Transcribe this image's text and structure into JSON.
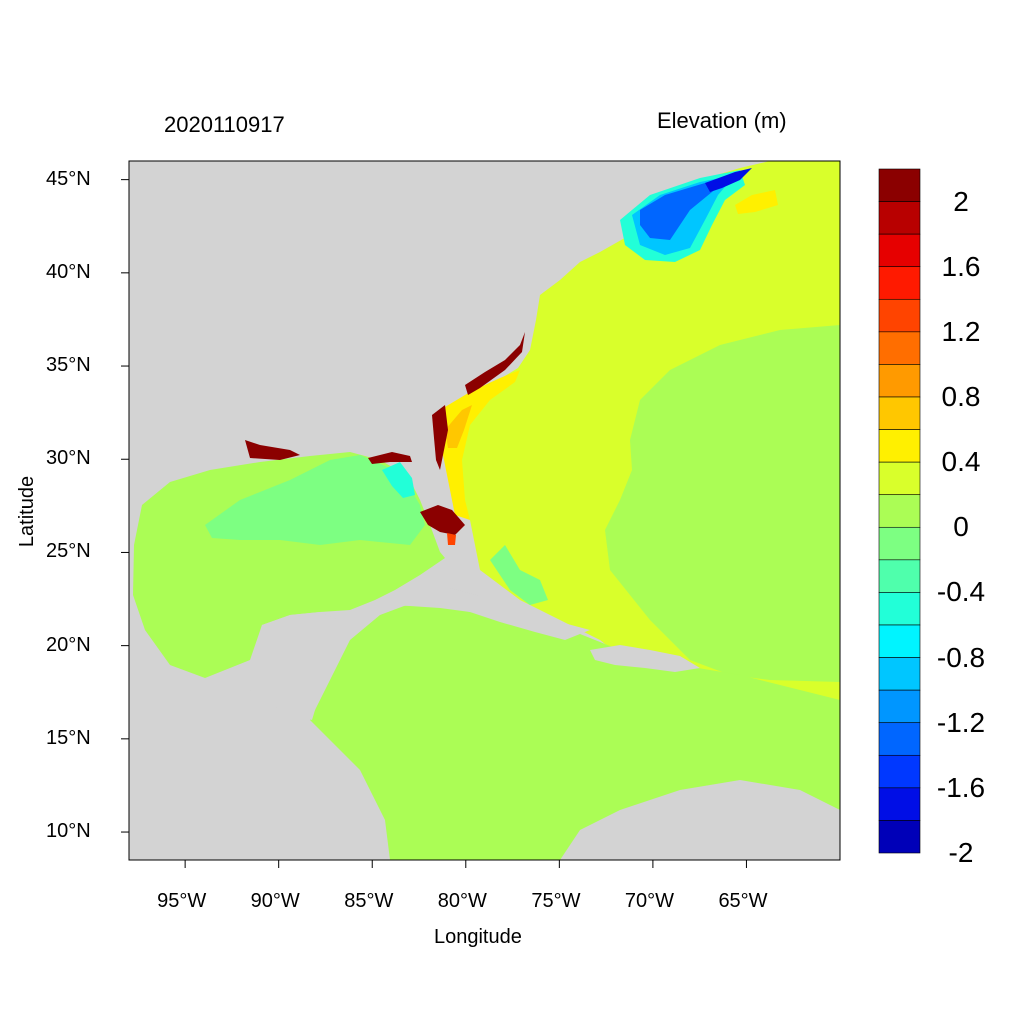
{
  "map": {
    "date_label": "2020110917",
    "variable_label": "Elevation (m)",
    "xlabel": "Longitude",
    "ylabel": "Latitude",
    "lon_range": [
      -98,
      -60
    ],
    "lat_range": [
      8.5,
      46
    ],
    "lon_ticks": [
      "95°W",
      "90°W",
      "85°W",
      "80°W",
      "75°W",
      "70°W",
      "65°W"
    ],
    "lon_tick_values": [
      -95,
      -90,
      -85,
      -80,
      -75,
      -70,
      -65
    ],
    "lat_ticks": [
      "45°N",
      "40°N",
      "35°N",
      "30°N",
      "25°N",
      "20°N",
      "15°N",
      "10°N"
    ],
    "lat_tick_values": [
      45,
      40,
      35,
      30,
      25,
      20,
      15,
      10
    ],
    "land_color": "#d3d3d3",
    "ocean_base_color": "#abfd55"
  },
  "colorbar": {
    "labels": [
      "2",
      "1.6",
      "1.2",
      "0.8",
      "0.4",
      "0",
      "-0.4",
      "-0.8",
      "-1.2",
      "-1.6",
      "-2"
    ],
    "colors_top_to_bottom": [
      "#8b0000",
      "#b80000",
      "#e60000",
      "#ff1a00",
      "#ff4400",
      "#ff6e00",
      "#ff9a00",
      "#ffc700",
      "#fff000",
      "#d9ff2b",
      "#abfd55",
      "#7dff82",
      "#4fffac",
      "#22ffd8",
      "#00f4ff",
      "#00c6ff",
      "#0096ff",
      "#0066ff",
      "#0038ff",
      "#000ee6",
      "#0000b8"
    ]
  }
}
